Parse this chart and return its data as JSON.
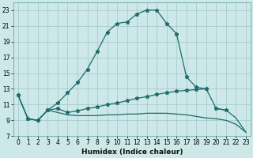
{
  "xlabel": "Humidex (Indice chaleur)",
  "background_color": "#cce8e8",
  "grid_color": "#aacccc",
  "line_color": "#1e6b6b",
  "xlim": [
    -0.5,
    23.5
  ],
  "ylim": [
    7,
    24
  ],
  "xticks": [
    0,
    1,
    2,
    3,
    4,
    5,
    6,
    7,
    8,
    9,
    10,
    11,
    12,
    13,
    14,
    15,
    16,
    17,
    18,
    19,
    20,
    21,
    22,
    23
  ],
  "yticks": [
    7,
    9,
    11,
    13,
    15,
    17,
    19,
    21,
    23
  ],
  "line1_x": [
    0,
    1,
    2,
    3,
    4,
    5,
    6,
    7,
    8,
    9,
    10,
    11,
    12,
    13,
    14,
    15,
    16,
    17,
    18,
    19
  ],
  "line1_y": [
    12.2,
    9.2,
    9.0,
    10.3,
    11.2,
    12.5,
    13.8,
    15.5,
    17.8,
    20.2,
    21.3,
    21.5,
    22.5,
    23.0,
    23.0,
    21.3,
    20.0,
    14.5,
    13.2,
    13.0
  ],
  "line2_x": [
    0,
    1,
    2,
    3,
    4,
    5,
    6,
    7,
    8,
    9,
    10,
    11,
    12,
    13,
    14,
    15,
    16,
    17,
    18,
    19,
    20,
    21
  ],
  "line2_y": [
    12.2,
    9.2,
    9.0,
    10.3,
    10.5,
    10.0,
    10.2,
    10.5,
    10.7,
    11.0,
    11.2,
    11.5,
    11.8,
    12.0,
    12.3,
    12.5,
    12.7,
    12.8,
    12.9,
    13.0,
    10.5,
    10.3
  ],
  "line3_x": [
    0,
    1,
    2,
    3,
    4,
    5,
    6,
    7,
    8,
    9,
    10,
    11,
    12,
    13,
    14,
    15,
    16,
    17,
    18,
    19,
    20,
    21,
    22,
    23
  ],
  "line3_y": [
    12.2,
    9.2,
    9.0,
    10.3,
    10.0,
    9.7,
    9.6,
    9.6,
    9.6,
    9.7,
    9.7,
    9.8,
    9.8,
    9.9,
    9.9,
    9.9,
    9.8,
    9.7,
    9.5,
    9.3,
    9.2,
    9.0,
    8.5,
    7.5
  ],
  "line4_x": [
    20,
    21,
    22,
    23
  ],
  "line4_y": [
    10.5,
    10.3,
    9.3,
    7.5
  ]
}
